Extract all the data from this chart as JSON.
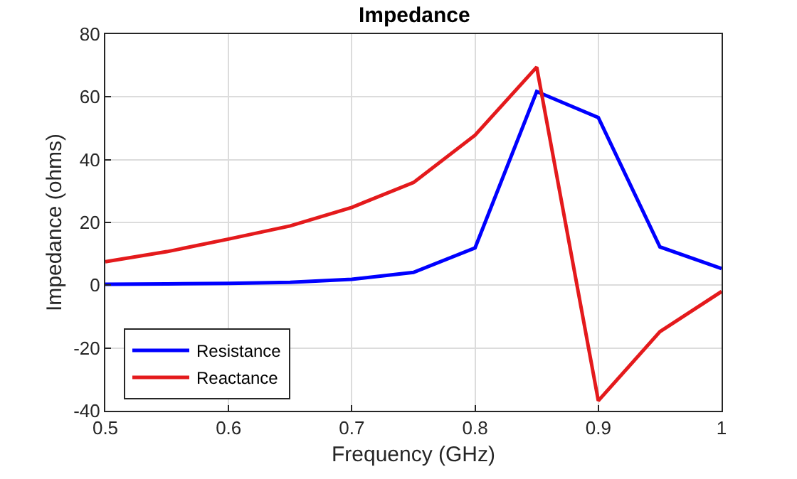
{
  "chart_data": {
    "type": "line",
    "title": "Impedance",
    "xlabel": "Frequency (GHz)",
    "ylabel": "Impedance (ohms)",
    "x": [
      0.5,
      0.55,
      0.6,
      0.65,
      0.7,
      0.75,
      0.8,
      0.85,
      0.9,
      0.95,
      1.0
    ],
    "series": [
      {
        "name": "Resistance",
        "color": "#0000ff",
        "values": [
          0.3,
          0.4,
          0.6,
          0.9,
          1.9,
          4.1,
          11.9,
          61.7,
          53.4,
          12.2,
          5.3
        ]
      },
      {
        "name": "Reactance",
        "color": "#e41a1c",
        "values": [
          7.5,
          10.7,
          14.7,
          18.9,
          24.8,
          32.7,
          47.8,
          69.5,
          -36.8,
          -14.8,
          -2
        ]
      }
    ],
    "xlim": [
      0.5,
      1
    ],
    "xticks": [
      0.5,
      0.6,
      0.7,
      0.8,
      0.9,
      1
    ],
    "ylim": [
      -40,
      80
    ],
    "yticks": [
      -40,
      -20,
      0,
      20,
      40,
      60,
      80
    ],
    "grid": true,
    "legend": "bottom left",
    "marker": "none",
    "line_style": "solid"
  }
}
